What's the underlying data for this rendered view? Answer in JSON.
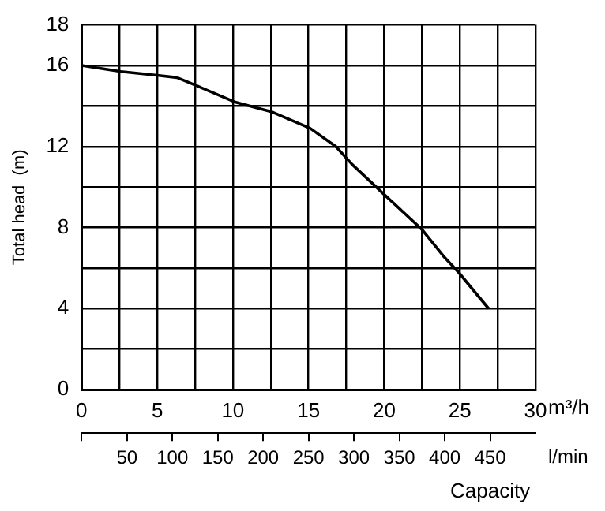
{
  "chart_data": {
    "type": "line",
    "ylabel": "Total head  (m)",
    "xlabel": "m³/h",
    "x2label": "l/min",
    "annotations": [
      "Capacity"
    ],
    "x": [
      0,
      2.6,
      5.1,
      6.3,
      7.6,
      10.1,
      12.6,
      15.1,
      16.8,
      17.9,
      19.9,
      22.5,
      23.9,
      24.9,
      26.9
    ],
    "series": [
      {
        "color": "#000000",
        "values": [
          16,
          15.7,
          15.5,
          15.4,
          15.0,
          14.2,
          13.7,
          12.9,
          12.0,
          11.1,
          9.7,
          7.9,
          6.6,
          5.8,
          4.0
        ]
      }
    ],
    "xlim": [
      0,
      30
    ],
    "xticks": [
      0,
      {
        "value": 2.5,
        "label": null
      },
      5,
      {
        "value": 7.5,
        "label": null
      },
      10,
      {
        "value": 12.5,
        "label": null
      },
      15,
      {
        "value": 17.5,
        "label": null
      },
      20,
      {
        "value": 22.5,
        "label": null
      },
      25,
      {
        "value": 27.5,
        "label": null
      },
      30
    ],
    "x2lim": [
      0,
      500
    ],
    "x2ticks": [
      {
        "value": 0,
        "label": null
      },
      50,
      100,
      150,
      200,
      250,
      300,
      350,
      400,
      450
    ],
    "ylim": [
      0,
      18
    ],
    "yticks": [
      0,
      {
        "value": 2,
        "label": null
      },
      4,
      {
        "value": 6,
        "label": null
      },
      8,
      {
        "value": 10,
        "label": null
      },
      12,
      {
        "value": 14,
        "label": null
      },
      16,
      18
    ],
    "grid": true,
    "legend": false,
    "marker": "none",
    "line_style": "solid"
  }
}
